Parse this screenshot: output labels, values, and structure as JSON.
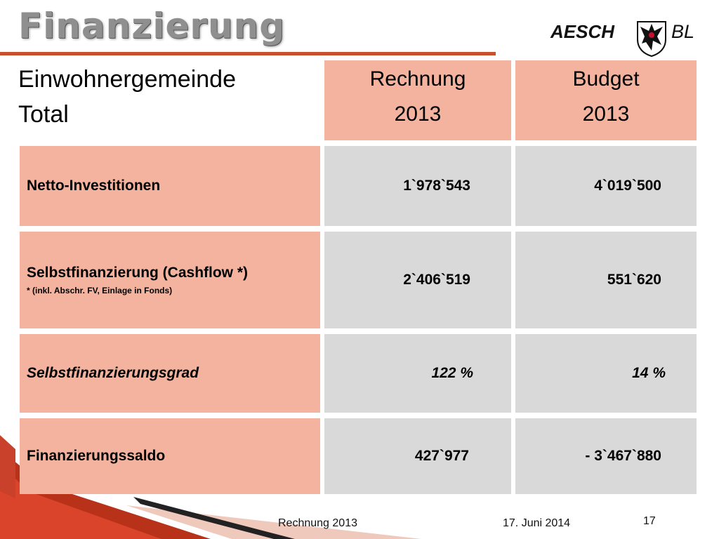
{
  "title": "Finanzierung",
  "logo": {
    "name": "AESCH",
    "suffix": "BL"
  },
  "table": {
    "corner": [
      "Einwohnergemeinde",
      "Total"
    ],
    "columns": [
      {
        "line1": "Rechnung",
        "line2": "2013"
      },
      {
        "line1": "Budget",
        "line2": "2013"
      }
    ],
    "rows": [
      {
        "label": "Netto-Investitionen",
        "note": "",
        "rechnung": "1`978`543",
        "budget": "4`019`500"
      },
      {
        "label": "Selbstfinanzierung (Cashflow *)",
        "note": "* (inkl. Abschr. FV, Einlage in Fonds)",
        "rechnung": "2`406`519",
        "budget": "551`620"
      },
      {
        "label": "Selbstfinanzierungsgrad",
        "note": "",
        "rechnung": "122 %",
        "budget": "14 %"
      },
      {
        "label": "Finanzierungssaldo",
        "note": "",
        "rechnung": "427`977",
        "budget": "- 3`467`880"
      }
    ]
  },
  "footer": {
    "left": "Rechnung 2013",
    "date": "17. Juni 2014",
    "page": "17"
  },
  "colors": {
    "accent": "#c8502a",
    "header_fill": "#f3b39e",
    "value_fill": "#d9d9d9"
  }
}
